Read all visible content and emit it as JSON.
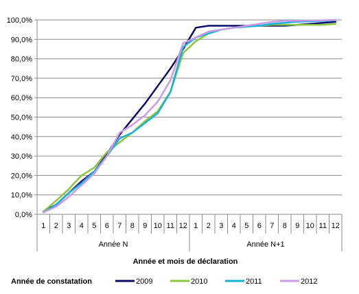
{
  "chart_data": {
    "type": "line",
    "title": "",
    "xlabel": "Année et mois de déclaration",
    "ylabel": "",
    "ylim": [
      0,
      100
    ],
    "y_tick_step": 10,
    "y_tick_labels": [
      "0,0%",
      "10,0%",
      "20,0%",
      "30,0%",
      "40,0%",
      "50,0%",
      "60,0%",
      "70,0%",
      "80,0%",
      "90,0%",
      "100,0%"
    ],
    "grid": "horizontal",
    "categories": [
      "1",
      "2",
      "3",
      "4",
      "5",
      "6",
      "7",
      "8",
      "9",
      "10",
      "11",
      "12",
      "1",
      "2",
      "3",
      "4",
      "5",
      "6",
      "7",
      "8",
      "9",
      "10",
      "11",
      "12"
    ],
    "groups": [
      {
        "label": "Année N",
        "span": 12
      },
      {
        "label": "Année N+1",
        "span": 12
      }
    ],
    "legend": {
      "title": "Année de constatation",
      "position": "bottom"
    },
    "series": [
      {
        "name": "2009",
        "color": "#0b0b6b",
        "values": [
          1.5,
          5,
          11,
          17,
          22,
          31,
          41,
          49,
          57,
          66,
          75,
          85,
          96,
          97,
          97,
          97,
          97,
          97,
          97,
          97,
          97.5,
          98,
          98.5,
          99
        ]
      },
      {
        "name": "2010",
        "color": "#8cc63f",
        "values": [
          1.5,
          7,
          13,
          20,
          24,
          32,
          37,
          42,
          48,
          53,
          63,
          83,
          89,
          93,
          95,
          96,
          96.5,
          97,
          97.5,
          97.5,
          97.5,
          97.5,
          97.5,
          98
        ]
      },
      {
        "name": "2011",
        "color": "#1ab0d8",
        "values": [
          1,
          5,
          11,
          16,
          22,
          30,
          39,
          42,
          47,
          52,
          63,
          86,
          91,
          93,
          95,
          96,
          96.5,
          97,
          98,
          98.5,
          99,
          99.3,
          99.5,
          99.7
        ]
      },
      {
        "name": "2012",
        "color": "#c79be8",
        "values": [
          1,
          4,
          9,
          15,
          21,
          30,
          42,
          46,
          51,
          58,
          69,
          88,
          91,
          94,
          95,
          96,
          97,
          98,
          99,
          99.5,
          99.5,
          99.7,
          99.8,
          100
        ]
      }
    ]
  }
}
